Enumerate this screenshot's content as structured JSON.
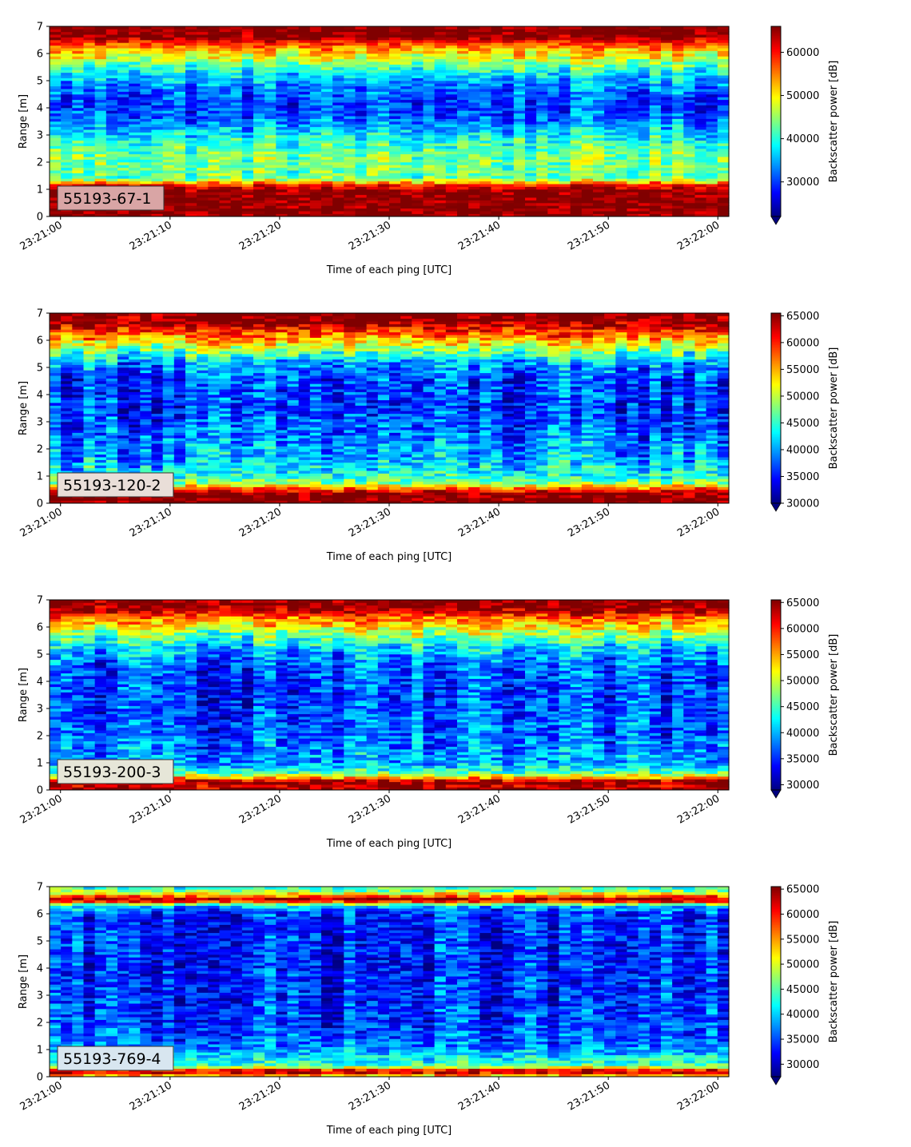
{
  "figure": {
    "colormap": "jet",
    "chart_data": [
      {
        "type": "heatmap",
        "label": "55193-67-1",
        "xlabel": "Time of each ping [UTC]",
        "ylabel": "Range [m]",
        "colorbar_label": "Backscatter power [dB]",
        "x_ticks": [
          "23:21:00",
          "23:21:10",
          "23:21:20",
          "23:21:30",
          "23:21:40",
          "23:21:50",
          "23:22:00"
        ],
        "y_ticks": [
          0,
          1,
          2,
          3,
          4,
          5,
          6,
          7
        ],
        "ylim": [
          0,
          7
        ],
        "xlim_seconds": [
          -1,
          61
        ],
        "clim": [
          22000,
          66000
        ],
        "colorbar_ticks": [
          30000,
          40000,
          50000,
          60000
        ],
        "colorbar_extend": "min",
        "label_box_color": "#d9a5a5",
        "profile": [
          {
            "range": 0.0,
            "value": 66000
          },
          {
            "range": 0.25,
            "value": 66000
          },
          {
            "range": 0.9,
            "value": 66000
          },
          {
            "range": 1.15,
            "value": 60000
          },
          {
            "range": 1.4,
            "value": 43000
          },
          {
            "range": 2.2,
            "value": 44000
          },
          {
            "range": 2.8,
            "value": 40000
          },
          {
            "range": 3.2,
            "value": 36000
          },
          {
            "range": 3.7,
            "value": 31000
          },
          {
            "range": 4.3,
            "value": 30000
          },
          {
            "range": 4.9,
            "value": 34000
          },
          {
            "range": 5.4,
            "value": 40000
          },
          {
            "range": 5.9,
            "value": 49000
          },
          {
            "range": 6.3,
            "value": 56000
          },
          {
            "range": 6.55,
            "value": 64000
          },
          {
            "range": 6.7,
            "value": 66000
          },
          {
            "range": 7.0,
            "value": 66000
          }
        ]
      },
      {
        "type": "heatmap",
        "label": "55193-120-2",
        "xlabel": "Time of each ping [UTC]",
        "ylabel": "Range [m]",
        "colorbar_label": "Backscatter power [dB]",
        "x_ticks": [
          "23:21:00",
          "23:21:10",
          "23:21:20",
          "23:21:30",
          "23:21:40",
          "23:21:50",
          "23:22:00"
        ],
        "y_ticks": [
          0,
          1,
          2,
          3,
          4,
          5,
          6,
          7
        ],
        "ylim": [
          0,
          7
        ],
        "xlim_seconds": [
          -1,
          61
        ],
        "clim": [
          30000,
          65500
        ],
        "colorbar_ticks": [
          30000,
          35000,
          40000,
          45000,
          50000,
          55000,
          60000,
          65000
        ],
        "colorbar_extend": "min",
        "label_box_color": "#e9ded8",
        "profile": [
          {
            "range": 0.0,
            "value": 65500
          },
          {
            "range": 0.35,
            "value": 65500
          },
          {
            "range": 0.5,
            "value": 60000
          },
          {
            "range": 0.7,
            "value": 50000
          },
          {
            "range": 0.9,
            "value": 45000
          },
          {
            "range": 1.5,
            "value": 41000
          },
          {
            "range": 2.5,
            "value": 38000
          },
          {
            "range": 3.5,
            "value": 36000
          },
          {
            "range": 4.5,
            "value": 36500
          },
          {
            "range": 5.2,
            "value": 40000
          },
          {
            "range": 5.7,
            "value": 49000
          },
          {
            "range": 6.2,
            "value": 57000
          },
          {
            "range": 6.6,
            "value": 64000
          },
          {
            "range": 6.8,
            "value": 65500
          },
          {
            "range": 7.0,
            "value": 65500
          }
        ]
      },
      {
        "type": "heatmap",
        "label": "55193-200-3",
        "xlabel": "Time of each ping [UTC]",
        "ylabel": "Range [m]",
        "colorbar_label": "Backscatter power [dB]",
        "x_ticks": [
          "23:21:00",
          "23:21:10",
          "23:21:20",
          "23:21:30",
          "23:21:40",
          "23:21:50",
          "23:22:00"
        ],
        "y_ticks": [
          0,
          1,
          2,
          3,
          4,
          5,
          6,
          7
        ],
        "ylim": [
          0,
          7
        ],
        "xlim_seconds": [
          -1,
          61
        ],
        "clim": [
          29000,
          65500
        ],
        "colorbar_ticks": [
          30000,
          35000,
          40000,
          45000,
          50000,
          55000,
          60000,
          65000
        ],
        "colorbar_extend": "min",
        "label_box_color": "#e6e6d8",
        "profile": [
          {
            "range": 0.0,
            "value": 65500
          },
          {
            "range": 0.15,
            "value": 63000
          },
          {
            "range": 0.3,
            "value": 65500
          },
          {
            "range": 0.45,
            "value": 55000
          },
          {
            "range": 0.65,
            "value": 45000
          },
          {
            "range": 1.0,
            "value": 39000
          },
          {
            "range": 2.0,
            "value": 36500
          },
          {
            "range": 3.5,
            "value": 35000
          },
          {
            "range": 4.5,
            "value": 36000
          },
          {
            "range": 5.2,
            "value": 40000
          },
          {
            "range": 5.8,
            "value": 48000
          },
          {
            "range": 6.3,
            "value": 56000
          },
          {
            "range": 6.6,
            "value": 63000
          },
          {
            "range": 6.85,
            "value": 65500
          },
          {
            "range": 7.0,
            "value": 65500
          }
        ]
      },
      {
        "type": "heatmap",
        "label": "55193-769-4",
        "xlabel": "Time of each ping [UTC]",
        "ylabel": "Range [m]",
        "colorbar_label": "Backscatter power [dB]",
        "x_ticks": [
          "23:21:00",
          "23:21:10",
          "23:21:20",
          "23:21:30",
          "23:21:40",
          "23:21:50",
          "23:22:00"
        ],
        "y_ticks": [
          0,
          1,
          2,
          3,
          4,
          5,
          6,
          7
        ],
        "ylim": [
          0,
          7
        ],
        "xlim_seconds": [
          -1,
          61
        ],
        "clim": [
          27500,
          65500
        ],
        "colorbar_ticks": [
          30000,
          35000,
          40000,
          45000,
          50000,
          55000,
          60000,
          65000
        ],
        "colorbar_extend": "min",
        "label_box_color": "#d8e6f0",
        "profile": [
          {
            "range": 0.0,
            "value": 50000
          },
          {
            "range": 0.2,
            "value": 65500
          },
          {
            "range": 0.32,
            "value": 52000
          },
          {
            "range": 0.45,
            "value": 44000
          },
          {
            "range": 0.8,
            "value": 40000
          },
          {
            "range": 1.2,
            "value": 36000
          },
          {
            "range": 2.0,
            "value": 34000
          },
          {
            "range": 4.0,
            "value": 33000
          },
          {
            "range": 6.0,
            "value": 33500
          },
          {
            "range": 6.3,
            "value": 40000
          },
          {
            "range": 6.5,
            "value": 65500
          },
          {
            "range": 6.68,
            "value": 55000
          },
          {
            "range": 6.85,
            "value": 46000
          },
          {
            "range": 7.0,
            "value": 43000
          }
        ]
      }
    ]
  }
}
